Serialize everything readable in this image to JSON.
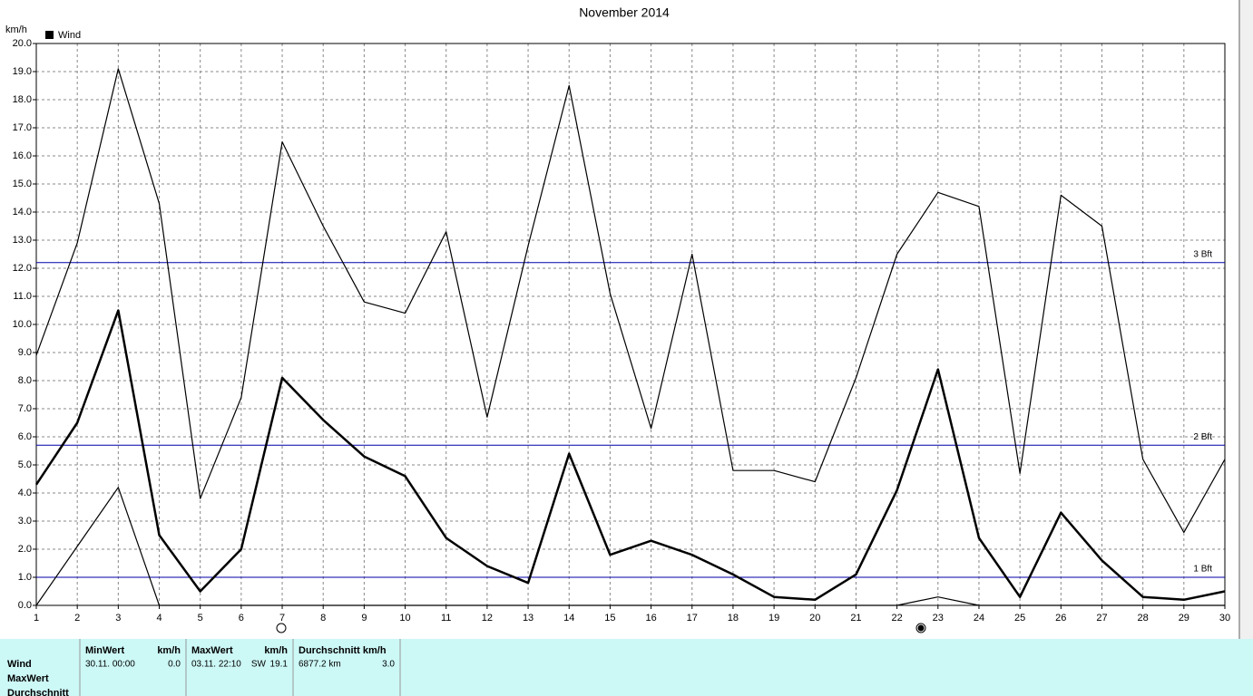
{
  "chart_data": {
    "type": "line",
    "title": "November 2014",
    "y_label": "km/h",
    "x": [
      1,
      2,
      3,
      4,
      5,
      6,
      7,
      8,
      9,
      10,
      11,
      12,
      13,
      14,
      15,
      16,
      17,
      18,
      19,
      20,
      21,
      22,
      23,
      24,
      25,
      26,
      27,
      28,
      29,
      30
    ],
    "xlim": [
      1,
      30
    ],
    "xticks": [
      1,
      2,
      3,
      4,
      5,
      6,
      7,
      8,
      9,
      10,
      11,
      12,
      13,
      14,
      15,
      16,
      17,
      18,
      19,
      20,
      21,
      22,
      23,
      24,
      25,
      26,
      27,
      28,
      29,
      30
    ],
    "ylim": [
      0,
      20
    ],
    "yticks": [
      {
        "value": 0,
        "label": "0.0"
      },
      {
        "value": 1,
        "label": "1.0"
      },
      {
        "value": 2,
        "label": "2.0"
      },
      {
        "value": 3,
        "label": "3.0"
      },
      {
        "value": 4,
        "label": "4.0"
      },
      {
        "value": 5,
        "label": "5.0"
      },
      {
        "value": 6,
        "label": "6.0"
      },
      {
        "value": 7,
        "label": "7.0"
      },
      {
        "value": 8,
        "label": "8.0"
      },
      {
        "value": 9,
        "label": "9.0"
      },
      {
        "value": 10,
        "label": "10.0"
      },
      {
        "value": 11,
        "label": "11.0"
      },
      {
        "value": 12,
        "label": "12.0"
      },
      {
        "value": 13,
        "label": "13.0"
      },
      {
        "value": 14,
        "label": "14.0"
      },
      {
        "value": 15,
        "label": "15.0"
      },
      {
        "value": 16,
        "label": "16.0"
      },
      {
        "value": 17,
        "label": "17.0"
      },
      {
        "value": 18,
        "label": "18.0"
      },
      {
        "value": 19,
        "label": "19.0"
      },
      {
        "value": 20,
        "label": "20.0"
      }
    ],
    "grid": true,
    "series": [
      {
        "name": "Wind",
        "color": "#000000",
        "line_width": 2.5,
        "values": [
          4.3,
          6.5,
          10.5,
          2.5,
          0.5,
          2.0,
          8.1,
          6.6,
          5.3,
          4.6,
          2.4,
          1.4,
          0.8,
          5.4,
          1.8,
          2.3,
          1.8,
          1.1,
          0.3,
          0.2,
          1.1,
          4.1,
          8.4,
          2.4,
          0.3,
          3.3,
          1.6,
          0.3,
          0.2,
          0.5
        ]
      },
      {
        "color": "#000000",
        "line_width": 1.2,
        "values": [
          8.9,
          12.9,
          19.1,
          14.3,
          3.8,
          7.4,
          16.5,
          13.5,
          10.8,
          10.4,
          13.3,
          6.7,
          12.8,
          18.5,
          11.1,
          6.3,
          12.5,
          4.8,
          4.8,
          4.4,
          8.1,
          12.5,
          14.7,
          14.2,
          4.7,
          14.6,
          13.5,
          5.2,
          2.6,
          5.2
        ]
      },
      {
        "color": "#000000",
        "line_width": 1.2,
        "values": [
          0.0,
          2.1,
          4.2,
          0.0,
          0.0,
          0.0,
          0.0,
          0.0,
          0.0,
          0.0,
          0.0,
          0.0,
          0.0,
          0.0,
          0.0,
          0.0,
          0.0,
          0.0,
          0.0,
          0.0,
          0.0,
          0.0,
          0.3,
          0.0,
          0.0,
          0.0,
          0.0,
          0.0,
          0.0,
          0.0
        ]
      }
    ],
    "ref_lines": [
      {
        "value": 12.2,
        "label": "3 Bft"
      },
      {
        "value": 5.7,
        "label": "2 Bft"
      },
      {
        "value": 1.0,
        "label": "1 Bft"
      }
    ],
    "ref_color": "#0000aa",
    "legend": "upper left"
  },
  "summary": {
    "row_labels": [
      "Wind",
      "MaxWert",
      "Durchschnitt"
    ],
    "groups": [
      {
        "title": "MinWert",
        "unit": "km/h",
        "cells": [
          "30.11.  00:00",
          "0.0"
        ]
      },
      {
        "title": "MaxWert",
        "unit": "km/h",
        "cells": [
          "03.11.  22:10",
          "SW",
          "19.1"
        ]
      },
      {
        "title": "Durchschnitt km/h",
        "cells": [
          "6877.2 km",
          "3.0"
        ]
      }
    ]
  }
}
